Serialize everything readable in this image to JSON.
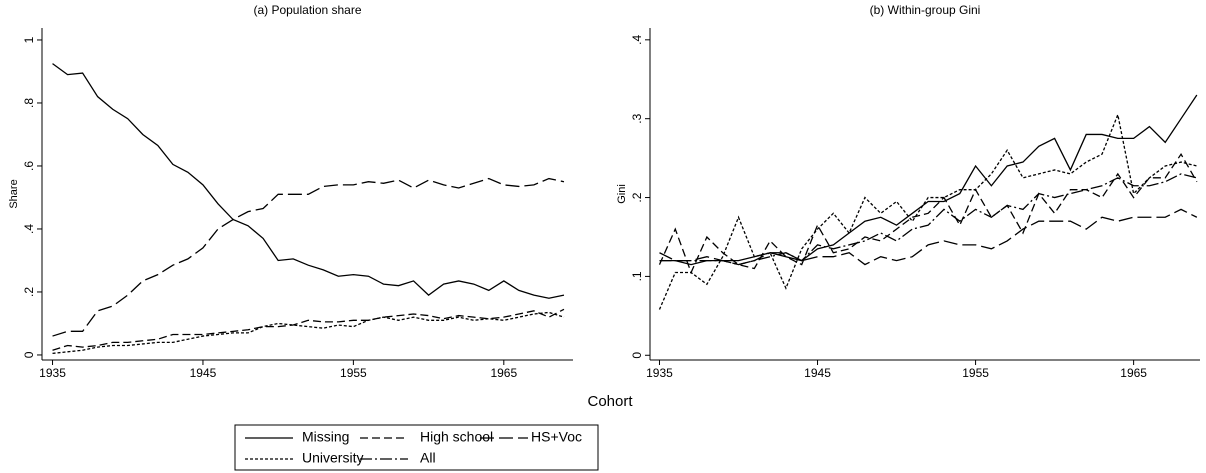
{
  "x_axis_title": "Cohort",
  "chart_data": [
    {
      "type": "line",
      "title": "(a) Population share",
      "ylabel": "Share",
      "x": [
        1935,
        1936,
        1937,
        1938,
        1939,
        1940,
        1941,
        1942,
        1943,
        1944,
        1945,
        1946,
        1947,
        1948,
        1949,
        1950,
        1951,
        1952,
        1953,
        1954,
        1955,
        1956,
        1957,
        1958,
        1959,
        1960,
        1961,
        1962,
        1963,
        1964,
        1965,
        1966,
        1967,
        1968,
        1969
      ],
      "xlim": [
        1934.3,
        1969.6
      ],
      "xticks": [
        1935,
        1945,
        1955,
        1965
      ],
      "ylim": [
        -0.016,
        1.038
      ],
      "yticks": [
        0,
        {
          "value": 0.2,
          "label": ".2"
        },
        {
          "value": 0.4,
          "label": ".4"
        },
        {
          "value": 0.6,
          "label": ".6"
        },
        {
          "value": 0.8,
          "label": ".8"
        },
        1
      ],
      "series": [
        {
          "name": "Missing",
          "color": "#000000",
          "values": [
            0.925,
            0.89,
            0.895,
            0.82,
            0.78,
            0.75,
            0.7,
            0.665,
            0.605,
            0.58,
            0.54,
            0.48,
            0.43,
            0.41,
            0.37,
            0.3,
            0.305,
            0.285,
            0.27,
            0.25,
            0.255,
            0.25,
            0.225,
            0.22,
            0.235,
            0.19,
            0.225,
            0.235,
            0.225,
            0.205,
            0.235,
            0.205,
            0.19,
            0.18,
            0.19
          ]
        },
        {
          "name": "High school",
          "color": "#000000",
          "values": [
            0.015,
            0.03,
            0.025,
            0.03,
            0.04,
            0.04,
            0.045,
            0.05,
            0.065,
            0.065,
            0.065,
            0.07,
            0.075,
            0.08,
            0.09,
            0.09,
            0.095,
            0.11,
            0.105,
            0.105,
            0.11,
            0.11,
            0.12,
            0.125,
            0.13,
            0.125,
            0.115,
            0.125,
            0.12,
            0.115,
            0.12,
            0.13,
            0.14,
            0.12,
            0.145
          ]
        },
        {
          "name": "HS+Voc",
          "color": "#000000",
          "values": [
            0.06,
            0.075,
            0.075,
            0.14,
            0.155,
            0.19,
            0.235,
            0.255,
            0.285,
            0.305,
            0.34,
            0.4,
            0.43,
            0.455,
            0.465,
            0.51,
            0.51,
            0.51,
            0.535,
            0.54,
            0.54,
            0.55,
            0.545,
            0.555,
            0.53,
            0.555,
            0.54,
            0.53,
            0.545,
            0.56,
            0.54,
            0.535,
            0.54,
            0.56,
            0.55
          ]
        },
        {
          "name": "University",
          "color": "#000000",
          "values": [
            0.005,
            0.01,
            0.015,
            0.025,
            0.03,
            0.03,
            0.035,
            0.04,
            0.04,
            0.05,
            0.06,
            0.065,
            0.07,
            0.07,
            0.09,
            0.1,
            0.095,
            0.09,
            0.085,
            0.095,
            0.09,
            0.11,
            0.12,
            0.11,
            0.12,
            0.11,
            0.11,
            0.12,
            0.11,
            0.115,
            0.11,
            0.12,
            0.13,
            0.135,
            0.12
          ]
        }
      ]
    },
    {
      "type": "line",
      "title": "(b) Within-group Gini",
      "ylabel": "Gini",
      "x": [
        1935,
        1936,
        1937,
        1938,
        1939,
        1940,
        1941,
        1942,
        1943,
        1944,
        1945,
        1946,
        1947,
        1948,
        1949,
        1950,
        1951,
        1952,
        1953,
        1954,
        1955,
        1956,
        1957,
        1958,
        1959,
        1960,
        1961,
        1962,
        1963,
        1964,
        1965,
        1966,
        1967,
        1968,
        1969
      ],
      "xlim": [
        1934.4,
        1969.2
      ],
      "xticks": [
        1935,
        1945,
        1955,
        1965
      ],
      "ylim": [
        -0.006,
        0.415
      ],
      "yticks": [
        0,
        {
          "value": 0.1,
          "label": ".1"
        },
        {
          "value": 0.2,
          "label": ".2"
        },
        {
          "value": 0.3,
          "label": ".3"
        },
        {
          "value": 0.4,
          "label": ".4"
        }
      ],
      "series": [
        {
          "name": "Missing",
          "color": "#000000",
          "dash": "none",
          "values": [
            0.12,
            0.12,
            0.115,
            0.12,
            0.12,
            0.12,
            0.125,
            0.13,
            0.125,
            0.12,
            0.135,
            0.14,
            0.155,
            0.17,
            0.175,
            0.165,
            0.18,
            0.195,
            0.195,
            0.205,
            0.24,
            0.215,
            0.24,
            0.245,
            0.265,
            0.275,
            0.235,
            0.28,
            0.28,
            0.275,
            0.275,
            0.29,
            0.27,
            0.3,
            0.33
          ]
        },
        {
          "name": "High school",
          "color": "#000000",
          "dash": "8,4",
          "values": [
            0.115,
            0.16,
            0.105,
            0.15,
            0.13,
            0.115,
            0.11,
            0.145,
            0.125,
            0.115,
            0.165,
            0.13,
            0.135,
            0.15,
            0.145,
            0.16,
            0.175,
            0.18,
            0.2,
            0.165,
            0.21,
            0.175,
            0.19,
            0.155,
            0.205,
            0.18,
            0.21,
            0.21,
            0.2,
            0.23,
            0.2,
            0.225,
            0.225,
            0.255,
            0.22
          ]
        },
        {
          "name": "HS+Voc",
          "color": "#000000",
          "dash": "14,5",
          "values": [
            0.13,
            0.12,
            0.12,
            0.125,
            0.12,
            0.115,
            0.12,
            0.13,
            0.13,
            0.12,
            0.125,
            0.125,
            0.13,
            0.115,
            0.125,
            0.12,
            0.125,
            0.14,
            0.145,
            0.14,
            0.14,
            0.135,
            0.145,
            0.16,
            0.17,
            0.17,
            0.17,
            0.16,
            0.175,
            0.17,
            0.175,
            0.175,
            0.175,
            0.185,
            0.175
          ]
        },
        {
          "name": "University",
          "color": "#000000",
          "dash": "3,2",
          "values": [
            0.058,
            0.105,
            0.105,
            0.09,
            0.125,
            0.175,
            0.125,
            0.13,
            0.085,
            0.135,
            0.16,
            0.18,
            0.155,
            0.2,
            0.18,
            0.195,
            0.17,
            0.2,
            0.2,
            0.21,
            0.21,
            0.23,
            0.26,
            0.225,
            0.23,
            0.235,
            0.23,
            0.245,
            0.255,
            0.305,
            0.205,
            0.225,
            0.24,
            0.245,
            0.24
          ]
        },
        {
          "name": "All",
          "color": "#000000",
          "dash": "12,3,2,3",
          "values": [
            0.12,
            0.12,
            0.12,
            0.12,
            0.12,
            0.115,
            0.12,
            0.125,
            0.13,
            0.12,
            0.14,
            0.135,
            0.14,
            0.145,
            0.155,
            0.145,
            0.16,
            0.165,
            0.185,
            0.17,
            0.185,
            0.175,
            0.19,
            0.185,
            0.205,
            0.2,
            0.205,
            0.21,
            0.215,
            0.225,
            0.215,
            0.215,
            0.22,
            0.23,
            0.225
          ]
        }
      ]
    }
  ]
}
